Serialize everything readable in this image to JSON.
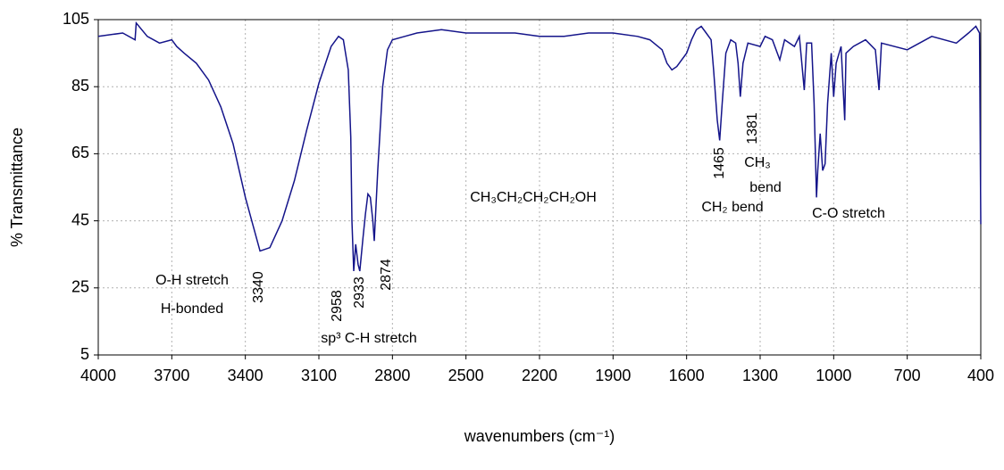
{
  "chart_data": {
    "type": "line",
    "x_label": "wavenumbers (cm⁻¹)",
    "y_label": "% Transmittance",
    "color": "#14148a",
    "grid": true,
    "xlim": [
      4000,
      400
    ],
    "ylim": [
      5,
      105
    ],
    "xticks": [
      4000,
      3700,
      3400,
      3100,
      2800,
      2500,
      2200,
      1900,
      1600,
      1300,
      1000,
      700,
      400
    ],
    "yticks": [
      5,
      25,
      45,
      65,
      85,
      105
    ],
    "x": [
      4000,
      3900,
      3850,
      3845,
      3800,
      3750,
      3700,
      3680,
      3650,
      3600,
      3550,
      3500,
      3450,
      3400,
      3370,
      3340,
      3300,
      3250,
      3200,
      3150,
      3100,
      3050,
      3020,
      3000,
      2980,
      2970,
      2965,
      2958,
      2950,
      2940,
      2933,
      2920,
      2910,
      2900,
      2890,
      2880,
      2874,
      2860,
      2840,
      2820,
      2800,
      2750,
      2700,
      2600,
      2500,
      2400,
      2300,
      2200,
      2100,
      2000,
      1900,
      1800,
      1750,
      1700,
      1680,
      1660,
      1640,
      1620,
      1600,
      1580,
      1560,
      1540,
      1520,
      1500,
      1490,
      1475,
      1465,
      1455,
      1440,
      1420,
      1400,
      1390,
      1381,
      1370,
      1350,
      1300,
      1280,
      1250,
      1220,
      1200,
      1160,
      1140,
      1120,
      1110,
      1090,
      1080,
      1070,
      1065,
      1055,
      1045,
      1035,
      1025,
      1010,
      1000,
      990,
      970,
      955,
      950,
      920,
      870,
      830,
      815,
      805,
      700,
      600,
      500,
      450,
      420,
      405,
      400
    ],
    "values": [
      100,
      101,
      99,
      104,
      100,
      98,
      99,
      97,
      95,
      92,
      87,
      79,
      68,
      52,
      44,
      36,
      37,
      45,
      57,
      72,
      86,
      97,
      100,
      99,
      90,
      70,
      45,
      30,
      38,
      32,
      30,
      40,
      47,
      53,
      52,
      45,
      39,
      60,
      85,
      96,
      99,
      100,
      101,
      102,
      101,
      101,
      101,
      100,
      100,
      101,
      101,
      100,
      99,
      96,
      92,
      90,
      91,
      93,
      95,
      99,
      102,
      103,
      101,
      99,
      90,
      75,
      69,
      80,
      95,
      99,
      98,
      92,
      82,
      92,
      98,
      97,
      100,
      99,
      93,
      99,
      97,
      100,
      84,
      98,
      98,
      80,
      52,
      60,
      71,
      60,
      62,
      80,
      95,
      82,
      92,
      97,
      75,
      95,
      97,
      99,
      96,
      84,
      98,
      96,
      100,
      98,
      101,
      103,
      101,
      44
    ],
    "annotations": [
      "O-H stretch",
      "H-bonded",
      "3340",
      "2958",
      "2933",
      "2874",
      "sp³ C-H stretch",
      "CH₃CH₂CH₂CH₂OH",
      "1465",
      "1381",
      "CH₃",
      "bend",
      "CH₂ bend",
      "C-O stretch"
    ]
  }
}
